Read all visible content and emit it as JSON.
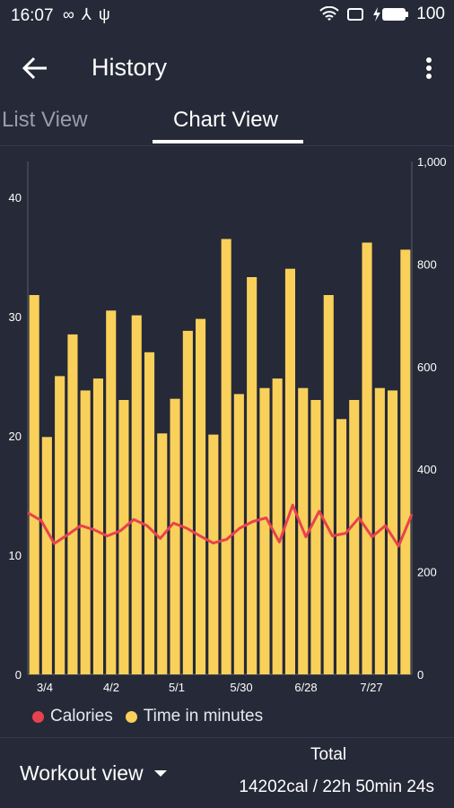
{
  "status": {
    "time": "16:07",
    "battery": "100"
  },
  "app_bar": {
    "title": "History",
    "back_icon": "arrow-left-icon",
    "menu_icon": "more-vert-icon"
  },
  "tabs": [
    {
      "label": "List View",
      "selected": false
    },
    {
      "label": "Chart View",
      "selected": true
    }
  ],
  "colors": {
    "background": "#262937",
    "bar": "#f9d05a",
    "line": "#e8424e",
    "axis_text": "#ffffff"
  },
  "chart_data": {
    "type": "bar",
    "x_tick_labels": [
      "3/4",
      "4/2",
      "5/1",
      "5/30",
      "6/28",
      "7/27"
    ],
    "left_axis": {
      "ticks": [
        "0",
        "10",
        "20",
        "30",
        "40"
      ],
      "range": [
        0,
        43
      ]
    },
    "right_axis": {
      "ticks": [
        "0",
        "200",
        "400",
        "600",
        "800",
        "1,000"
      ],
      "range": [
        0,
        1000
      ]
    },
    "series": [
      {
        "name": "Time in minutes",
        "type": "bar",
        "axis": "left",
        "values": [
          31.8,
          19.9,
          25,
          28.5,
          23.8,
          24.8,
          30.5,
          23,
          30.1,
          27,
          20.2,
          23.1,
          28.8,
          29.8,
          20.1,
          36.5,
          23.5,
          33.3,
          24,
          24.8,
          34,
          24,
          23,
          31.8,
          21.4,
          23,
          36.2,
          24,
          23.8,
          35.6
        ]
      },
      {
        "name": "Calories",
        "type": "line",
        "axis": "right",
        "values": [
          315,
          300,
          255,
          272,
          290,
          282,
          270,
          280,
          302,
          290,
          265,
          295,
          285,
          270,
          256,
          263,
          285,
          298,
          305,
          258,
          330,
          268,
          318,
          270,
          275,
          305,
          268,
          290,
          250,
          312
        ]
      }
    ],
    "legend": [
      "Calories",
      "Time in minutes"
    ],
    "legend_position": "bottom-left"
  },
  "bottom": {
    "workout_view_label": "Workout view",
    "total_label": "Total",
    "total_value": "14202cal / 22h 50min 24s"
  }
}
